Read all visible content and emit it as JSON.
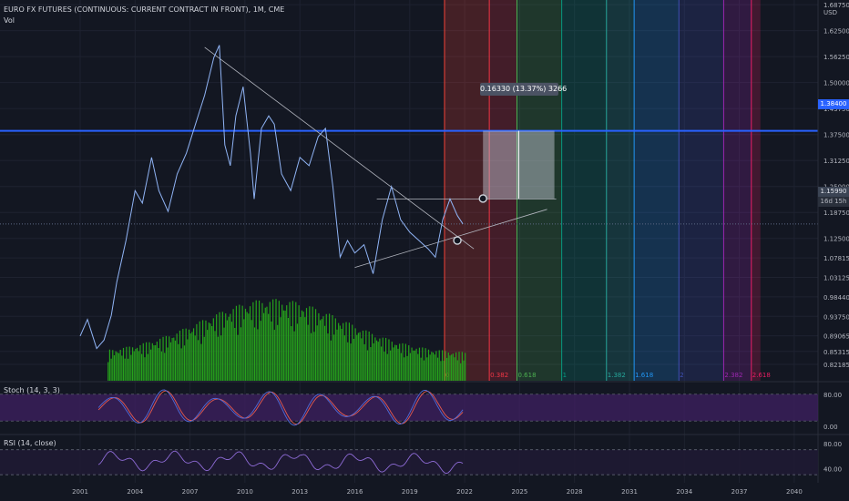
{
  "header": {
    "title": "EURO FX FUTURES (CONTINUOUS: CURRENT CONTRACT IN FRONT), 1M, CME",
    "volume_label": "Vol",
    "currency": "USD"
  },
  "price_axis": {
    "tick_labels": [
      "1.68750",
      "1.62500",
      "1.56250",
      "1.50000",
      "1.43750",
      "1.37500",
      "1.31250",
      "1.25000",
      "1.18750",
      "1.12500",
      "1.07815",
      "1.03125",
      "0.98440",
      "0.93750",
      "0.89065",
      "0.85315",
      "0.82185"
    ],
    "level_label": "1.38400",
    "last_price_label": "1.15990",
    "countdown_label": "16d 15h"
  },
  "time_axis": {
    "labels": [
      "2001",
      "2004",
      "2007",
      "2010",
      "2013",
      "2016",
      "2019",
      "2022",
      "2025",
      "2028",
      "2031",
      "2034",
      "2037",
      "2040"
    ]
  },
  "measure": {
    "label": "0.16330 (13.37%) 3266"
  },
  "fib_time_zones": {
    "labels": [
      "0",
      "0.382",
      "0.618",
      "1",
      "1.382",
      "1.618",
      "2",
      "2.382",
      "2.618"
    ],
    "colors": [
      "#f44336",
      "#f23645",
      "#4caf50",
      "#089981",
      "#26a69a",
      "#2196f3",
      "#3f51b5",
      "#9c27b0",
      "#e91e63"
    ]
  },
  "stoch": {
    "label": "Stoch (14, 3, 3)",
    "tick_labels": [
      "80.00",
      "0.00"
    ]
  },
  "rsi": {
    "label": "RSI (14, close)",
    "tick_labels": [
      "80.00",
      "40.00"
    ]
  },
  "colors": {
    "background": "#131722",
    "price_line": "#90b4f5",
    "volume": "#26a21c",
    "level": "#2962ff",
    "stoch_k": "#4f6bd9",
    "stoch_d": "#e65a4f",
    "rsi_line": "#8e6bd6",
    "indicator_band": "#3c1f5e"
  },
  "chart_data": {
    "type": "line",
    "instrument": "EUR/USD futures, monthly",
    "price_series": {
      "x": [
        2001.0,
        2001.4,
        2001.9,
        2002.3,
        2002.7,
        2003.0,
        2003.5,
        2004.0,
        2004.4,
        2004.9,
        2005.3,
        2005.8,
        2006.3,
        2006.8,
        2007.3,
        2007.8,
        2008.3,
        2008.6,
        2008.9,
        2009.2,
        2009.5,
        2009.9,
        2010.3,
        2010.5,
        2010.9,
        2011.3,
        2011.6,
        2012.0,
        2012.5,
        2013.0,
        2013.5,
        2014.0,
        2014.4,
        2014.8,
        2015.2,
        2015.6,
        2016.0,
        2016.5,
        2017.0,
        2017.5,
        2018.0,
        2018.5,
        2019.0,
        2019.5,
        2020.0,
        2020.4,
        2020.8,
        2021.2,
        2021.6,
        2021.9
      ],
      "y": [
        0.89,
        0.93,
        0.86,
        0.88,
        0.94,
        1.02,
        1.12,
        1.24,
        1.21,
        1.32,
        1.24,
        1.19,
        1.28,
        1.33,
        1.4,
        1.47,
        1.56,
        1.59,
        1.35,
        1.3,
        1.42,
        1.49,
        1.33,
        1.22,
        1.39,
        1.42,
        1.4,
        1.28,
        1.24,
        1.32,
        1.3,
        1.37,
        1.39,
        1.25,
        1.08,
        1.12,
        1.09,
        1.11,
        1.04,
        1.17,
        1.25,
        1.17,
        1.14,
        1.12,
        1.1,
        1.08,
        1.17,
        1.22,
        1.18,
        1.16
      ]
    },
    "ylim": [
      0.8,
      1.69
    ],
    "xlim": [
      2000,
      2042
    ],
    "volume_range": [
      2002.5,
      2022.0
    ],
    "horizontal_level": 1.384,
    "last_price": 1.1599,
    "trend_lines": [
      {
        "x": [
          2007.8,
          2022.5
        ],
        "y": [
          1.585,
          1.1
        ]
      },
      {
        "x": [
          2016.0,
          2026.5
        ],
        "y": [
          1.055,
          1.195
        ]
      },
      {
        "x": [
          2017.2,
          2027.0
        ],
        "y": [
          1.22,
          1.22
        ]
      }
    ],
    "measure_box": {
      "x": [
        2023.0,
        2026.9
      ],
      "y": [
        1.221,
        1.384
      ]
    },
    "fib_time_zones": {
      "start": 2020.9,
      "unit": 6.4,
      "ratios": [
        0,
        0.382,
        0.618,
        1,
        1.382,
        1.618,
        2,
        2.382,
        2.618
      ]
    },
    "stoch_ylim": [
      0,
      100
    ],
    "stoch_bands": [
      20,
      80
    ],
    "rsi_ylim": [
      20,
      90
    ],
    "rsi_bands": [
      30,
      70
    ]
  }
}
